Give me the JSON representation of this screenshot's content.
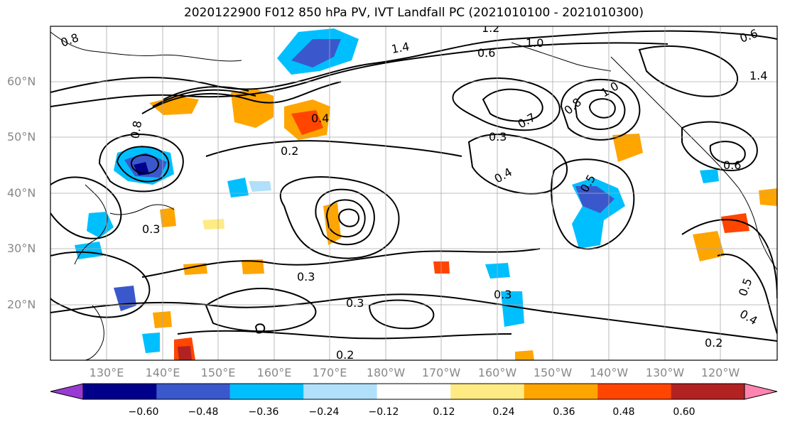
{
  "title": "2020122900 F012 850 hPa PV, IVT Landfall PC (2021010100 - 2021010300)",
  "lat_labels": [
    "60°N",
    "50°N",
    "40°N",
    "30°N",
    "20°N"
  ],
  "lon_labels": [
    "130°E",
    "140°E",
    "150°E",
    "160°E",
    "170°E",
    "180°W",
    "170°W",
    "160°W",
    "150°W",
    "140°W",
    "130°W",
    "120°W"
  ],
  "contour_labels": [
    "0.8",
    "1.2",
    "1.4",
    "1.0",
    "0.6",
    "0.7",
    "0.4",
    "0.8",
    "1.0",
    "0.2",
    "0.3",
    "0.4",
    "0.8",
    "0.3",
    "0.3",
    "0.3",
    "0.2",
    "0.3",
    "0.6",
    "0.5",
    "0.2",
    "0.4",
    "0.5",
    "1.4",
    "0.6"
  ],
  "colorbar": {
    "ticks": [
      "−0.60",
      "−0.48",
      "−0.36",
      "−0.24",
      "−0.12",
      "0.12",
      "0.24",
      "0.36",
      "0.48",
      "0.60"
    ],
    "colors": [
      "#9a3ad4",
      "#00008b",
      "#3a58cc",
      "#00bfff",
      "#b0e0fa",
      "#ffffff",
      "#ffeb84",
      "#ffa500",
      "#ff4500",
      "#b22222",
      "#ff85b0"
    ]
  }
}
